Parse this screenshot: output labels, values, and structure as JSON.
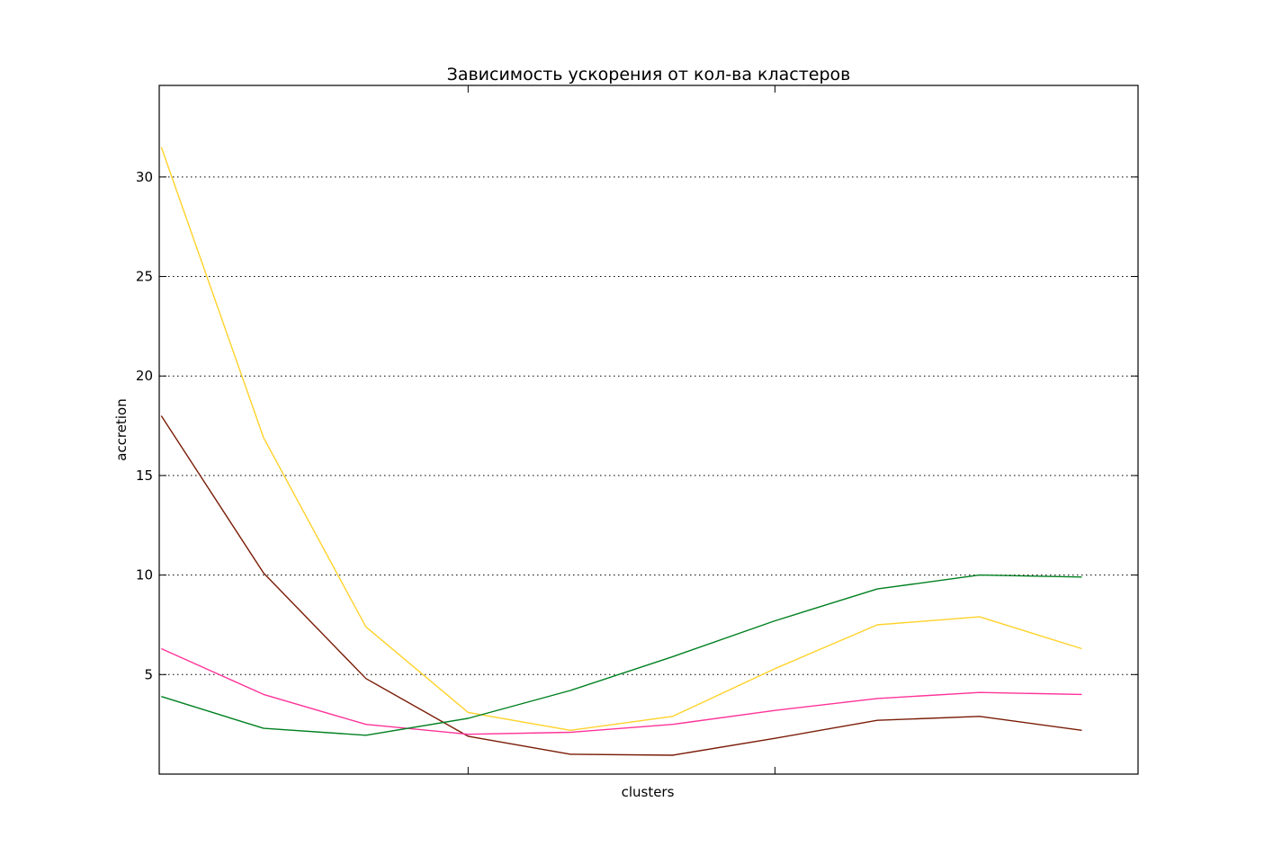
{
  "chart_data": {
    "type": "line",
    "title": "Зависимость ускорения от кол-ва кластеров",
    "xlabel": "clusters",
    "ylabel": "accretion",
    "x": [
      1,
      2,
      3,
      4,
      5,
      6,
      7,
      8,
      9,
      10
    ],
    "xlim": [
      0.98,
      10.55
    ],
    "ylim": [
      0,
      34.6
    ],
    "yticks": [
      5,
      10,
      15,
      20,
      25,
      30
    ],
    "ytick_labels": [
      "5",
      "10",
      "15",
      "20",
      "25",
      "30"
    ],
    "xticks_unlabeled": [
      4,
      7
    ],
    "grid": "horizontal dotted",
    "series": [
      {
        "color": "#ffd22a",
        "values": [
          31.5,
          16.9,
          7.4,
          3.1,
          2.2,
          2.9,
          5.3,
          7.5,
          7.9,
          6.3
        ]
      },
      {
        "color": "#7a1c07",
        "values": [
          18.0,
          10.1,
          4.8,
          1.9,
          1.0,
          0.95,
          1.8,
          2.7,
          2.9,
          2.2
        ]
      },
      {
        "color": "#ff3399",
        "values": [
          6.3,
          4.0,
          2.5,
          2.0,
          2.1,
          2.5,
          3.2,
          3.8,
          4.1,
          4.0
        ]
      },
      {
        "color": "#008020",
        "values": [
          3.9,
          2.3,
          1.95,
          2.8,
          4.2,
          5.9,
          7.7,
          9.3,
          10.0,
          9.9
        ]
      }
    ]
  }
}
